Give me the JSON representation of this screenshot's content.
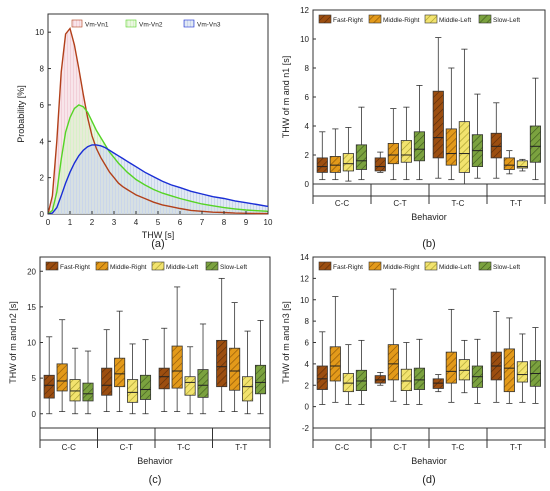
{
  "panel_labels": [
    "(a)",
    "(b)",
    "(c)",
    "(d)"
  ],
  "styles": {
    "curve_colors": [
      "#b2401a",
      "#55d425",
      "#1a2ed6"
    ],
    "curve_fills": [
      "#f2cfd8",
      "#d8f0c8",
      "#cad6ea"
    ],
    "box_fills": [
      "#9c4e10",
      "#e39a1a",
      "#f2e36e",
      "#7ba23f"
    ],
    "box_hatch": [
      "#5a2a08",
      "#8a5406",
      "#a79c2c",
      "#3f5a1e"
    ]
  },
  "chart_data": [
    {
      "type": "area",
      "title": "",
      "xlabel": "THW [s]",
      "ylabel": "Probability [%]",
      "xlim": [
        0,
        10
      ],
      "ylim": [
        0,
        11
      ],
      "xticks": [
        "0",
        "1",
        "2",
        "3",
        "4",
        "5",
        "6",
        "7",
        "8",
        "9",
        "10"
      ],
      "yticks": [
        "0",
        "2",
        "4",
        "6",
        "8",
        "10"
      ],
      "legend": "top",
      "grid": false,
      "x": [
        0,
        0.2,
        0.4,
        0.6,
        0.8,
        1.0,
        1.2,
        1.4,
        1.6,
        1.8,
        2.0,
        2.2,
        2.4,
        2.6,
        2.8,
        3.0,
        3.2,
        3.4,
        3.6,
        3.8,
        4.0,
        4.4,
        4.8,
        5.2,
        5.6,
        6.0,
        6.5,
        7.0,
        7.5,
        8.0,
        8.5,
        9.0,
        9.5,
        10.0
      ],
      "series": [
        {
          "name": "Vm-Vn1",
          "values": [
            0,
            1.0,
            4.0,
            7.8,
            9.9,
            10.2,
            9.3,
            8.0,
            6.6,
            5.3,
            4.3,
            3.6,
            3.1,
            2.7,
            2.3,
            2.0,
            1.7,
            1.5,
            1.35,
            1.2,
            1.05,
            0.85,
            0.65,
            0.5,
            0.4,
            0.3,
            0.2,
            0.15,
            0.1,
            0.08,
            0.05,
            0.04,
            0.03,
            0.02
          ]
        },
        {
          "name": "Vm-Vn2",
          "values": [
            0,
            0.2,
            1.2,
            3.0,
            4.5,
            5.3,
            5.8,
            6.0,
            5.9,
            5.6,
            5.1,
            4.6,
            4.2,
            3.8,
            3.4,
            3.1,
            2.8,
            2.55,
            2.3,
            2.1,
            1.9,
            1.6,
            1.35,
            1.15,
            1.0,
            0.85,
            0.7,
            0.55,
            0.45,
            0.35,
            0.28,
            0.22,
            0.18,
            0.15
          ]
        },
        {
          "name": "Vm-Vn3",
          "values": [
            0,
            0.05,
            0.35,
            1.0,
            1.7,
            2.3,
            2.8,
            3.2,
            3.5,
            3.7,
            3.8,
            3.8,
            3.75,
            3.65,
            3.5,
            3.35,
            3.2,
            3.05,
            2.9,
            2.75,
            2.6,
            2.3,
            2.05,
            1.8,
            1.6,
            1.45,
            1.25,
            1.1,
            0.95,
            0.85,
            0.72,
            0.62,
            0.52,
            0.42
          ]
        }
      ]
    },
    {
      "type": "box",
      "title": "",
      "xlabel": "Behavior",
      "ylabel": "THW of m and n1 [s]",
      "ylim": [
        0,
        12
      ],
      "yticks": [
        "0",
        "2",
        "4",
        "6",
        "8",
        "10",
        "12"
      ],
      "categories": [
        "C-C",
        "C-T",
        "T-C",
        "T-T"
      ],
      "series_names": [
        "Fast-Right",
        "Middle-Right",
        "Middle-Left",
        "Slow-Left"
      ],
      "legend": "top",
      "boxes": [
        [
          [
            0.3,
            0.8,
            1.2,
            1.8,
            3.6
          ],
          [
            0.3,
            0.8,
            1.3,
            1.9,
            3.8
          ],
          [
            0.2,
            0.9,
            1.4,
            2.1,
            3.9
          ],
          [
            0.3,
            1.0,
            1.6,
            2.7,
            5.3
          ]
        ],
        [
          [
            0.8,
            0.9,
            1.2,
            1.8,
            2.2
          ],
          [
            0.3,
            1.4,
            2.0,
            2.8,
            5.2
          ],
          [
            0.3,
            1.5,
            2.0,
            3.0,
            5.3
          ],
          [
            0.3,
            1.6,
            2.4,
            3.6,
            6.8
          ]
        ],
        [
          [
            0.4,
            1.8,
            3.2,
            6.4,
            10.1
          ],
          [
            0.3,
            1.3,
            2.1,
            3.8,
            8.0
          ],
          [
            0.0,
            0.8,
            2.1,
            4.3,
            9.3
          ],
          [
            0.4,
            1.2,
            2.3,
            3.4,
            6.2
          ]
        ],
        [
          [
            0.4,
            1.8,
            2.6,
            3.5,
            5.6
          ],
          [
            0.7,
            1.0,
            1.3,
            1.8,
            2.3
          ],
          [
            0.9,
            1.1,
            1.2,
            1.6,
            1.7
          ],
          [
            0.3,
            1.5,
            2.6,
            4.0,
            7.3
          ]
        ]
      ]
    },
    {
      "type": "box",
      "title": "",
      "xlabel": "Behavior",
      "ylabel": "THW of m and n2 [s]",
      "ylim": [
        -2,
        22
      ],
      "yticks": [
        "0",
        "5",
        "10",
        "15",
        "20"
      ],
      "categories": [
        "C-C",
        "C-T",
        "T-C",
        "T-T"
      ],
      "series_names": [
        "Fast-Right",
        "Middle-Right",
        "Middle-Left",
        "Slow-Left"
      ],
      "legend": "top",
      "boxes": [
        [
          [
            0,
            2.2,
            4.0,
            5.4,
            10.8
          ],
          [
            0.3,
            3.2,
            4.6,
            7.0,
            13.2
          ],
          [
            0,
            1.8,
            3.2,
            4.8,
            9.2
          ],
          [
            0,
            1.8,
            2.8,
            4.3,
            8.8
          ]
        ],
        [
          [
            0.3,
            2.6,
            4.0,
            6.4,
            11.8
          ],
          [
            0.3,
            3.8,
            5.6,
            7.8,
            14.4
          ],
          [
            0,
            1.6,
            3.0,
            4.8,
            9.8
          ],
          [
            0,
            2.0,
            3.4,
            5.4,
            10.4
          ]
        ],
        [
          [
            0.3,
            3.5,
            5.2,
            6.4,
            12.0
          ],
          [
            0.3,
            3.6,
            6.0,
            9.5,
            17.8
          ],
          [
            0,
            2.6,
            4.4,
            5.2,
            9.4
          ],
          [
            0,
            2.3,
            4.0,
            6.2,
            12.6
          ]
        ],
        [
          [
            0.3,
            3.8,
            6.6,
            10.3,
            19.0
          ],
          [
            0.3,
            3.3,
            6.0,
            9.2,
            15.6
          ],
          [
            0,
            1.8,
            3.8,
            5.2,
            11.6
          ],
          [
            0,
            2.8,
            4.4,
            6.8,
            13.1
          ]
        ]
      ]
    },
    {
      "type": "box",
      "title": "",
      "xlabel": "Behavior",
      "ylabel": "THW of m and n3 [s]",
      "ylim": [
        -2,
        14
      ],
      "yticks": [
        "-2",
        "0",
        "2",
        "4",
        "6",
        "8",
        "10",
        "12",
        "14"
      ],
      "categories": [
        "C-C",
        "C-T",
        "T-C",
        "T-T"
      ],
      "series_names": [
        "Fast-Right",
        "Middle-Right",
        "Middle-Left",
        "Slow-Left"
      ],
      "legend": "top",
      "boxes": [
        [
          [
            0.2,
            1.6,
            2.6,
            3.8,
            7.0
          ],
          [
            0.4,
            2.4,
            3.8,
            5.6,
            10.3
          ],
          [
            0.2,
            1.4,
            2.2,
            3.1,
            5.8
          ],
          [
            0.2,
            1.5,
            2.4,
            3.4,
            6.2
          ]
        ],
        [
          [
            2.0,
            2.2,
            2.5,
            2.9,
            3.2
          ],
          [
            0.5,
            2.5,
            4.0,
            5.8,
            11.0
          ],
          [
            0.2,
            1.5,
            2.4,
            3.5,
            6.0
          ],
          [
            0.2,
            1.6,
            2.5,
            3.6,
            6.3
          ]
        ],
        [
          [
            1.4,
            1.7,
            2.2,
            2.6,
            3.0
          ],
          [
            0.4,
            2.2,
            3.3,
            5.1,
            9.1
          ],
          [
            1.3,
            2.5,
            3.4,
            4.4,
            6.2
          ],
          [
            0.3,
            1.8,
            2.8,
            3.8,
            6.3
          ]
        ],
        [
          [
            0.4,
            2.5,
            3.8,
            5.1,
            8.9
          ],
          [
            0.3,
            1.4,
            3.6,
            5.4,
            8.3
          ],
          [
            0.4,
            2.3,
            3.0,
            4.2,
            6.8
          ],
          [
            0.3,
            1.9,
            3.1,
            4.3,
            7.4
          ]
        ]
      ]
    }
  ]
}
